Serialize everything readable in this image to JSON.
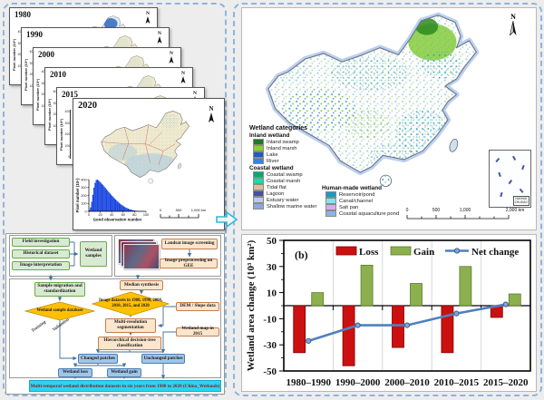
{
  "figure": {
    "north": "N"
  },
  "stack": {
    "panels": [
      {
        "year": "1980"
      },
      {
        "year": "1990"
      },
      {
        "year": "2000"
      },
      {
        "year": "2010"
      },
      {
        "year": "2015"
      },
      {
        "year": "2020"
      }
    ],
    "axis_label": "Pixel number (10⁶)",
    "mini_ticks": [
      "400",
      "300",
      "200",
      "100",
      "0"
    ],
    "scalebar": [
      "0",
      "500",
      "1,000 km"
    ]
  },
  "map": {
    "legend_title": "Wetland categories",
    "legend": {
      "groups": [
        {
          "header": "Inland wetland",
          "items": [
            {
              "label": "Inland swamp",
              "color": "#1c7a28"
            },
            {
              "label": "Inland marsh",
              "color": "#86d41e"
            },
            {
              "label": "Lake",
              "color": "#1f5ac8"
            },
            {
              "label": "River",
              "color": "#2e86f0"
            }
          ]
        },
        {
          "header": "Coastal wetland",
          "items": [
            {
              "label": "Coastal swamp",
              "color": "#06a96e"
            },
            {
              "label": "Coastal marsh",
              "color": "#0fe0a8"
            },
            {
              "label": "Tidal flat",
              "color": "#d9c195"
            },
            {
              "label": "Lagoon",
              "color": "#46519e"
            },
            {
              "label": "Estuary water",
              "color": "#bccbe8"
            },
            {
              "label": "Shallow marine water",
              "color": "#92a8dc"
            }
          ]
        },
        {
          "header": "Human-made wetland",
          "items": [
            {
              "label": "Reservoir/pond",
              "color": "#1a9cc0"
            },
            {
              "label": "Canal/channel",
              "color": "#82e4f2"
            },
            {
              "label": "Salt pan",
              "color": "#e0aae4"
            },
            {
              "label": "Coastal aquaculture pond",
              "color": "#86b6e8"
            }
          ]
        }
      ]
    },
    "scalebar": [
      "0",
      "500",
      "1,000",
      "2,000 km"
    ],
    "inset": {
      "line1": "NANHAI",
      "line2": "ZHUDAO"
    }
  },
  "flowchart": {
    "field_investigation": "Field investigation",
    "historical_dataset": "Historical dataset",
    "image_interpretation": "Image interpretation",
    "wetland_samples": "Wetland samples",
    "landsat_screening": "Landsat image screening",
    "gee_preprocessing": "Image preprocessing on GEE",
    "sample_migration": "Sample migration and standardization",
    "median_synthesis": "Median synthesis",
    "sample_database": "Wetland sample database",
    "image_datasets": "Image datasets in 1980, 1990, 2000, 2010, 2015, and 2020",
    "training": "Training",
    "validation": "Validation",
    "segmentation": "Multi-resolution segmentation",
    "dem_slope": "DEM / Slope data",
    "map_2015": "Wetland map in 2015",
    "hierarchical": "Hierarchical decision-tree classification",
    "changed_patches": "Changed patches",
    "unchanged_patches": "Unchanged patches",
    "wetland_loss": "Wetland loss",
    "wetland_gain": "Wetland gain",
    "output": "Multi-temporal wetland distribution datasets in six years from 1980 to 2020 (China_Wetlands)"
  },
  "chart_data": [
    {
      "type": "bar",
      "panel_label": "(b)",
      "categories": [
        "1980–1990",
        "1990–2000",
        "2000–2010",
        "2010–2015",
        "2015–2020"
      ],
      "series": [
        {
          "name": "Loss",
          "type": "bar",
          "color": "#cc1010",
          "edge": "#7f0000",
          "values": [
            -36,
            -46,
            -32,
            -36,
            -9
          ]
        },
        {
          "name": "Gain",
          "type": "bar",
          "color": "#8cb04e",
          "edge": "#5e7a2e",
          "values": [
            10,
            31,
            17,
            30,
            9
          ]
        },
        {
          "name": "Net change",
          "type": "line",
          "color": "#4f81bd",
          "values": [
            -27,
            -15,
            -15,
            -6,
            1
          ]
        }
      ],
      "ylabel": "Wetland area change (10³ km²)",
      "ylim": [
        -50,
        50
      ],
      "yticks": [
        50,
        30,
        10,
        -10,
        -30,
        -50
      ],
      "minor_yticks": [
        40,
        20,
        0,
        -20,
        -40
      ],
      "legend_position": "top-center",
      "grid": "vertical category separators"
    },
    {
      "type": "histogram",
      "context": "2020 panel inset",
      "xlabel": "Good observation number",
      "ylabel": "Pixel number (10⁶)",
      "xlim": [
        0,
        100
      ],
      "ylim": [
        0,
        400
      ],
      "xticks": [
        0,
        20,
        40,
        60,
        80,
        100
      ],
      "yticks": [
        0,
        100,
        200,
        300,
        400
      ],
      "bin_width": 2,
      "bar_color": "#1a46e0",
      "values": [
        15,
        50,
        120,
        210,
        300,
        360,
        395,
        400,
        390,
        375,
        360,
        345,
        330,
        312,
        295,
        278,
        260,
        243,
        226,
        210,
        194,
        178,
        163,
        148,
        134,
        120,
        107,
        95,
        84,
        74,
        64,
        55,
        47,
        40,
        34,
        28,
        23,
        19,
        15,
        12,
        9,
        7,
        5,
        4,
        3,
        2,
        2,
        1,
        1,
        1
      ]
    }
  ]
}
